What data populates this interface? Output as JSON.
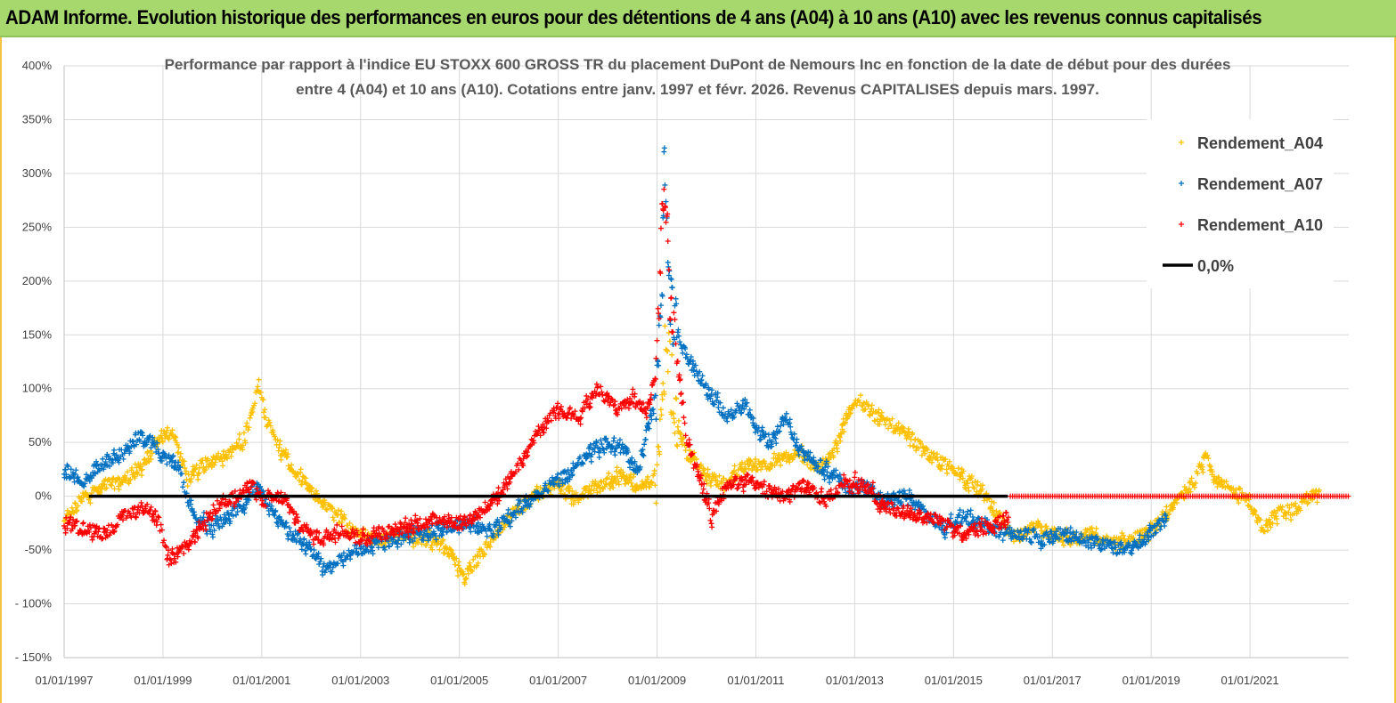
{
  "header": {
    "title": "ADAM Informe. Evolution historique des performances en euros pour des détentions de 4 ans (A04) à 10 ans (A10) avec les revenus connus capitalisés"
  },
  "chart_data": {
    "type": "scatter",
    "title_lines": [
      "Performance par rapport à l'indice EU STOXX 600 GROSS TR  du placement DuPont de Nemours Inc en fonction de la date de début pour des durées",
      "entre 4 (A04) et 10 ans (A10). Cotations entre janv. 1997 et févr. 2026. Revenus CAPITALISES depuis mars. 1997."
    ],
    "xlabel": "",
    "ylabel": "",
    "xlim": [
      1997.0,
      2023.0
    ],
    "ylim": [
      -150,
      400
    ],
    "y_ticks": [
      {
        "value": 400,
        "label": "400%"
      },
      {
        "value": 350,
        "label": "350%"
      },
      {
        "value": 300,
        "label": "300%"
      },
      {
        "value": 250,
        "label": "250%"
      },
      {
        "value": 200,
        "label": "200%"
      },
      {
        "value": 150,
        "label": "150%"
      },
      {
        "value": 100,
        "label": "100%"
      },
      {
        "value": 50,
        "label": "50%"
      },
      {
        "value": 0,
        "label": "0%"
      },
      {
        "value": -50,
        "label": "-50%"
      },
      {
        "value": -100,
        "label": "- 100%"
      },
      {
        "value": -150,
        "label": "- 150%"
      }
    ],
    "x_ticks": [
      {
        "value": 1997,
        "label": "01/01/1997"
      },
      {
        "value": 1999,
        "label": "01/01/1999"
      },
      {
        "value": 2001,
        "label": "01/01/2001"
      },
      {
        "value": 2003,
        "label": "01/01/2003"
      },
      {
        "value": 2005,
        "label": "01/01/2005"
      },
      {
        "value": 2007,
        "label": "01/01/2007"
      },
      {
        "value": 2009,
        "label": "01/01/2009"
      },
      {
        "value": 2011,
        "label": "01/01/2011"
      },
      {
        "value": 2013,
        "label": "01/01/2013"
      },
      {
        "value": 2015,
        "label": "01/01/2015"
      },
      {
        "value": 2017,
        "label": "01/01/2017"
      },
      {
        "value": 2019,
        "label": "01/01/2019"
      },
      {
        "value": 2021,
        "label": "01/01/2021"
      }
    ],
    "grid": true,
    "legend_position": "top-right",
    "series": [
      {
        "name": "Rendement_A04",
        "color": "#ffc000",
        "marker": "plus",
        "x_start": 1997.0,
        "x_end": 2022.4,
        "keypoints": [
          [
            1997.0,
            -25
          ],
          [
            1997.4,
            0
          ],
          [
            1997.8,
            10
          ],
          [
            1998.2,
            15
          ],
          [
            1998.6,
            30
          ],
          [
            1999.0,
            55
          ],
          [
            1999.2,
            60
          ],
          [
            1999.5,
            15
          ],
          [
            1999.8,
            30
          ],
          [
            2000.3,
            40
          ],
          [
            2000.6,
            50
          ],
          [
            2000.8,
            75
          ],
          [
            2000.95,
            105
          ],
          [
            2001.1,
            70
          ],
          [
            2001.4,
            40
          ],
          [
            2001.7,
            20
          ],
          [
            2002.0,
            5
          ],
          [
            2002.4,
            -15
          ],
          [
            2002.8,
            -30
          ],
          [
            2003.3,
            -40
          ],
          [
            2003.8,
            -35
          ],
          [
            2004.3,
            -40
          ],
          [
            2004.8,
            -50
          ],
          [
            2005.1,
            -75
          ],
          [
            2005.5,
            -50
          ],
          [
            2006.0,
            -20
          ],
          [
            2006.5,
            0
          ],
          [
            2007.0,
            10
          ],
          [
            2007.4,
            0
          ],
          [
            2007.8,
            10
          ],
          [
            2008.2,
            20
          ],
          [
            2008.6,
            10
          ],
          [
            2008.85,
            10
          ],
          [
            2009.0,
            20
          ],
          [
            2009.1,
            100
          ],
          [
            2009.2,
            150
          ],
          [
            2009.35,
            80
          ],
          [
            2009.6,
            40
          ],
          [
            2010.0,
            20
          ],
          [
            2010.4,
            10
          ],
          [
            2010.8,
            30
          ],
          [
            2011.2,
            30
          ],
          [
            2011.6,
            35
          ],
          [
            2011.9,
            40
          ],
          [
            2012.3,
            25
          ],
          [
            2012.6,
            45
          ],
          [
            2012.9,
            80
          ],
          [
            2013.1,
            90
          ],
          [
            2013.4,
            75
          ],
          [
            2013.8,
            65
          ],
          [
            2014.2,
            50
          ],
          [
            2014.6,
            35
          ],
          [
            2015.0,
            25
          ],
          [
            2015.4,
            10
          ],
          [
            2015.8,
            -10
          ],
          [
            2016.2,
            -40
          ],
          [
            2016.6,
            -30
          ],
          [
            2017.0,
            -35
          ],
          [
            2017.4,
            -40
          ],
          [
            2017.8,
            -35
          ],
          [
            2018.2,
            -45
          ],
          [
            2018.6,
            -40
          ],
          [
            2018.9,
            -35
          ],
          [
            2019.3,
            -20
          ],
          [
            2019.6,
            0
          ],
          [
            2019.9,
            15
          ],
          [
            2020.1,
            40
          ],
          [
            2020.3,
            15
          ],
          [
            2020.6,
            5
          ],
          [
            2020.9,
            0
          ],
          [
            2021.1,
            -20
          ],
          [
            2021.3,
            -30
          ],
          [
            2021.6,
            -15
          ],
          [
            2022.0,
            -10
          ],
          [
            2022.2,
            0
          ],
          [
            2022.4,
            0
          ]
        ]
      },
      {
        "name": "Rendement_A07",
        "color": "#0070c0",
        "marker": "plus",
        "x_start": 1997.0,
        "x_end": 2019.3,
        "keypoints": [
          [
            1997.0,
            25
          ],
          [
            1997.4,
            15
          ],
          [
            1997.8,
            30
          ],
          [
            1998.2,
            40
          ],
          [
            1998.5,
            55
          ],
          [
            1998.8,
            50
          ],
          [
            1999.0,
            35
          ],
          [
            1999.3,
            30
          ],
          [
            1999.6,
            -20
          ],
          [
            2000.0,
            -30
          ],
          [
            2000.3,
            -20
          ],
          [
            2000.6,
            -10
          ],
          [
            2000.9,
            10
          ],
          [
            2001.2,
            -15
          ],
          [
            2001.6,
            -35
          ],
          [
            2002.0,
            -50
          ],
          [
            2002.3,
            -70
          ],
          [
            2002.7,
            -55
          ],
          [
            2003.2,
            -45
          ],
          [
            2003.7,
            -40
          ],
          [
            2004.2,
            -35
          ],
          [
            2004.7,
            -30
          ],
          [
            2005.2,
            -25
          ],
          [
            2005.6,
            -35
          ],
          [
            2006.0,
            -20
          ],
          [
            2006.4,
            -5
          ],
          [
            2006.8,
            10
          ],
          [
            2007.2,
            20
          ],
          [
            2007.6,
            40
          ],
          [
            2008.0,
            50
          ],
          [
            2008.4,
            40
          ],
          [
            2008.6,
            20
          ],
          [
            2008.8,
            60
          ],
          [
            2009.0,
            100
          ],
          [
            2009.1,
            200
          ],
          [
            2009.15,
            330
          ],
          [
            2009.25,
            200
          ],
          [
            2009.4,
            150
          ],
          [
            2009.6,
            130
          ],
          [
            2010.0,
            100
          ],
          [
            2010.4,
            75
          ],
          [
            2010.8,
            85
          ],
          [
            2011.0,
            60
          ],
          [
            2011.3,
            50
          ],
          [
            2011.6,
            75
          ],
          [
            2011.8,
            50
          ],
          [
            2012.2,
            30
          ],
          [
            2012.6,
            20
          ],
          [
            2012.9,
            5
          ],
          [
            2013.2,
            10
          ],
          [
            2013.6,
            -5
          ],
          [
            2014.0,
            0
          ],
          [
            2014.4,
            -15
          ],
          [
            2014.8,
            -30
          ],
          [
            2015.2,
            -20
          ],
          [
            2015.6,
            -25
          ],
          [
            2016.0,
            -35
          ],
          [
            2016.4,
            -35
          ],
          [
            2016.8,
            -40
          ],
          [
            2017.2,
            -35
          ],
          [
            2017.6,
            -40
          ],
          [
            2018.0,
            -45
          ],
          [
            2018.4,
            -50
          ],
          [
            2018.8,
            -45
          ],
          [
            2019.1,
            -30
          ],
          [
            2019.3,
            -20
          ]
        ]
      },
      {
        "name": "Rendement_A10",
        "color": "#ff0000",
        "marker": "plus",
        "x_start": 1997.0,
        "x_end": 2016.1,
        "keypoints": [
          [
            1997.0,
            -25
          ],
          [
            1997.4,
            -30
          ],
          [
            1997.8,
            -35
          ],
          [
            1998.2,
            -20
          ],
          [
            1998.6,
            -10
          ],
          [
            1998.9,
            -20
          ],
          [
            1999.1,
            -60
          ],
          [
            1999.3,
            -55
          ],
          [
            1999.6,
            -40
          ],
          [
            1999.9,
            -20
          ],
          [
            2000.2,
            -5
          ],
          [
            2000.5,
            0
          ],
          [
            2000.8,
            10
          ],
          [
            2001.0,
            -5
          ],
          [
            2001.4,
            0
          ],
          [
            2001.8,
            -30
          ],
          [
            2002.2,
            -40
          ],
          [
            2002.6,
            -30
          ],
          [
            2003.0,
            -40
          ],
          [
            2003.4,
            -35
          ],
          [
            2003.8,
            -30
          ],
          [
            2004.2,
            -25
          ],
          [
            2004.6,
            -20
          ],
          [
            2005.0,
            -25
          ],
          [
            2005.4,
            -15
          ],
          [
            2005.8,
            0
          ],
          [
            2006.2,
            30
          ],
          [
            2006.6,
            60
          ],
          [
            2007.0,
            80
          ],
          [
            2007.4,
            75
          ],
          [
            2007.8,
            100
          ],
          [
            2008.2,
            80
          ],
          [
            2008.5,
            90
          ],
          [
            2008.8,
            80
          ],
          [
            2009.0,
            120
          ],
          [
            2009.1,
            250
          ],
          [
            2009.15,
            300
          ],
          [
            2009.25,
            200
          ],
          [
            2009.4,
            130
          ],
          [
            2009.6,
            50
          ],
          [
            2009.9,
            10
          ],
          [
            2010.1,
            -20
          ],
          [
            2010.4,
            10
          ],
          [
            2010.8,
            15
          ],
          [
            2011.2,
            5
          ],
          [
            2011.6,
            0
          ],
          [
            2012.0,
            10
          ],
          [
            2012.4,
            -5
          ],
          [
            2012.8,
            15
          ],
          [
            2013.2,
            10
          ],
          [
            2013.6,
            -10
          ],
          [
            2014.0,
            -15
          ],
          [
            2014.4,
            -20
          ],
          [
            2014.8,
            -25
          ],
          [
            2015.2,
            -35
          ],
          [
            2015.6,
            -30
          ],
          [
            2015.9,
            -25
          ],
          [
            2016.1,
            -20
          ]
        ]
      },
      {
        "name": "0,0%",
        "color": "#000000",
        "marker": "line",
        "x": [
          1997.5,
          2023.0
        ],
        "y": [
          0,
          0
        ]
      }
    ]
  }
}
